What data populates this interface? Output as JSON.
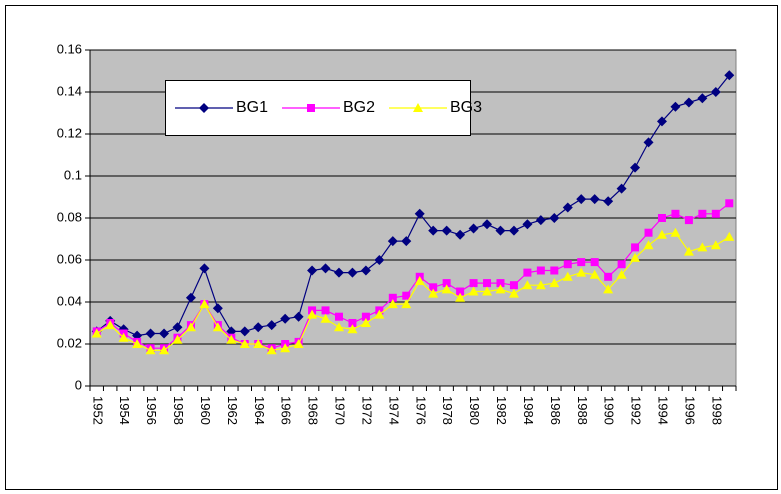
{
  "chart_data": {
    "type": "line",
    "categories": [
      "1952",
      null,
      "1954",
      null,
      "1956",
      null,
      "1958",
      null,
      "1960",
      null,
      "1962",
      null,
      "1964",
      null,
      "1966",
      null,
      "1968",
      null,
      "1970",
      null,
      "1972",
      null,
      "1974",
      null,
      "1976",
      null,
      "1978",
      null,
      "1980",
      null,
      "1982",
      null,
      "1984",
      null,
      "1986",
      null,
      "1988",
      null,
      "1990",
      null,
      "1992",
      null,
      "1994",
      null,
      "1996",
      null,
      "1998",
      null
    ],
    "series": [
      {
        "name": "BG1",
        "color": "#000080",
        "marker": "diamond",
        "values": [
          0.026,
          0.031,
          0.027,
          0.024,
          0.025,
          0.025,
          0.028,
          0.042,
          0.056,
          0.037,
          0.026,
          0.026,
          0.028,
          0.029,
          0.032,
          0.033,
          0.055,
          0.056,
          0.054,
          0.054,
          0.055,
          0.06,
          0.069,
          0.069,
          0.082,
          0.074,
          0.074,
          0.072,
          0.075,
          0.077,
          0.074,
          0.074,
          0.077,
          0.079,
          0.08,
          0.085,
          0.089,
          0.089,
          0.088,
          0.094,
          0.104,
          0.116,
          0.126,
          0.133,
          0.135,
          0.137,
          0.14,
          0.148
        ]
      },
      {
        "name": "BG2",
        "color": "#ff00ff",
        "marker": "square",
        "values": [
          0.026,
          0.03,
          0.025,
          0.021,
          0.018,
          0.018,
          0.023,
          0.029,
          0.039,
          0.029,
          0.023,
          0.02,
          0.02,
          0.018,
          0.02,
          0.021,
          0.036,
          0.036,
          0.033,
          0.03,
          0.033,
          0.036,
          0.042,
          0.043,
          0.052,
          0.047,
          0.049,
          0.045,
          0.049,
          0.049,
          0.049,
          0.048,
          0.054,
          0.055,
          0.055,
          0.058,
          0.059,
          0.059,
          0.052,
          0.058,
          0.066,
          0.073,
          0.08,
          0.082,
          0.079,
          0.082,
          0.082,
          0.087
        ]
      },
      {
        "name": "BG3",
        "color": "#ffff00",
        "marker": "triangle",
        "values": [
          0.025,
          0.029,
          0.023,
          0.02,
          0.017,
          0.017,
          0.022,
          0.028,
          0.039,
          0.028,
          0.022,
          0.02,
          0.02,
          0.017,
          0.018,
          0.02,
          0.034,
          0.032,
          0.028,
          0.027,
          0.03,
          0.034,
          0.039,
          0.039,
          0.05,
          0.044,
          0.046,
          0.042,
          0.045,
          0.045,
          0.046,
          0.044,
          0.048,
          0.048,
          0.049,
          0.052,
          0.054,
          0.053,
          0.046,
          0.053,
          0.061,
          0.067,
          0.072,
          0.073,
          0.064,
          0.066,
          0.067,
          0.071
        ]
      }
    ],
    "ylim": [
      0,
      0.16
    ],
    "yticks": [
      0,
      0.02,
      0.04,
      0.06,
      0.08,
      0.1,
      0.12,
      0.14,
      0.16
    ],
    "grid": true,
    "plot_background": "#c0c0c0"
  }
}
